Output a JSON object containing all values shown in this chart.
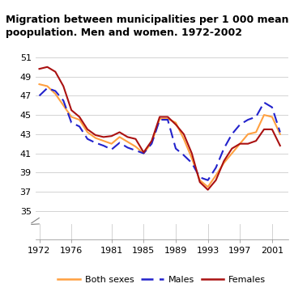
{
  "title": "Migration between municipalities per 1 000 mean\npoopulation. Men and women. 1972-2002",
  "years": [
    1972,
    1973,
    1974,
    1975,
    1976,
    1977,
    1978,
    1979,
    1980,
    1981,
    1982,
    1983,
    1984,
    1985,
    1986,
    1987,
    1988,
    1989,
    1990,
    1991,
    1992,
    1993,
    1994,
    1995,
    1996,
    1997,
    1998,
    1999,
    2000,
    2001,
    2002
  ],
  "both_sexes": [
    48.2,
    48.0,
    47.2,
    46.0,
    44.8,
    44.5,
    43.2,
    42.6,
    42.3,
    42.0,
    42.7,
    42.2,
    41.7,
    41.0,
    42.1,
    44.6,
    44.6,
    44.2,
    42.5,
    40.5,
    38.2,
    37.5,
    38.7,
    40.0,
    41.0,
    42.0,
    43.0,
    43.2,
    45.0,
    44.8,
    43.0
  ],
  "males": [
    47.0,
    47.8,
    47.5,
    46.5,
    44.2,
    43.8,
    42.5,
    42.1,
    41.8,
    41.4,
    42.1,
    41.6,
    41.3,
    41.0,
    42.0,
    44.5,
    44.5,
    41.5,
    40.8,
    40.0,
    38.5,
    38.2,
    39.5,
    41.5,
    43.0,
    44.0,
    44.5,
    44.8,
    46.3,
    45.8,
    43.2
  ],
  "females": [
    49.8,
    50.0,
    49.5,
    48.0,
    45.5,
    44.8,
    43.5,
    42.9,
    42.7,
    42.8,
    43.2,
    42.7,
    42.5,
    41.1,
    42.3,
    44.8,
    44.8,
    44.0,
    43.0,
    41.0,
    38.0,
    37.2,
    38.2,
    40.2,
    41.5,
    42.0,
    42.0,
    42.3,
    43.5,
    43.5,
    41.8
  ],
  "color_both": "#FFA040",
  "color_males": "#2222CC",
  "color_females": "#AA1111",
  "yticks_main": [
    35,
    37,
    39,
    41,
    43,
    45,
    47,
    49,
    51
  ],
  "xticks": [
    1972,
    1976,
    1981,
    1985,
    1989,
    1993,
    1997,
    2001
  ],
  "bg_color": "#ffffff",
  "grid_color": "#cccccc",
  "ylim_main": [
    34.0,
    51.5
  ]
}
